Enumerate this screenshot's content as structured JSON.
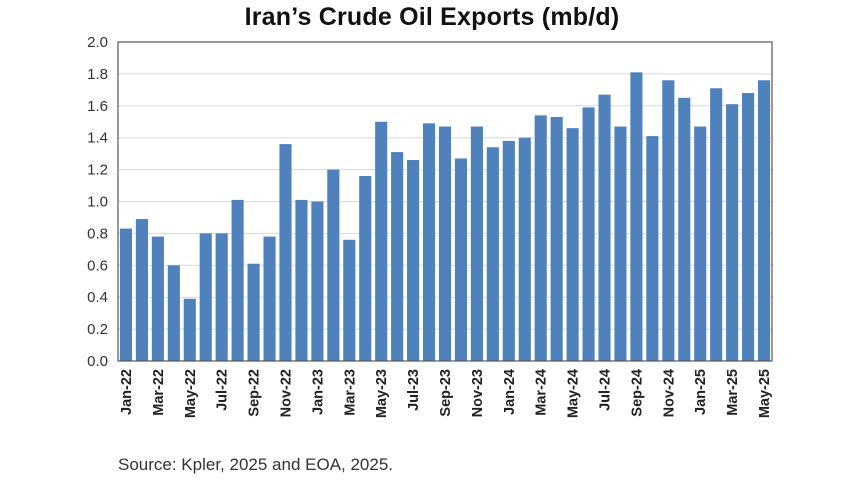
{
  "chart_data": {
    "type": "bar",
    "title": "Iran’s Crude Oil Exports (mb/d)",
    "xlabel": "",
    "ylabel": "",
    "ylim": [
      0,
      2.0
    ],
    "yticks": [
      "0.0",
      "0.2",
      "0.4",
      "0.6",
      "0.8",
      "1.0",
      "1.2",
      "1.4",
      "1.6",
      "1.8",
      "2.0"
    ],
    "categories": [
      "Jan-22",
      "Feb-22",
      "Mar-22",
      "Apr-22",
      "May-22",
      "Jun-22",
      "Jul-22",
      "Aug-22",
      "Sep-22",
      "Oct-22",
      "Nov-22",
      "Dec-22",
      "Jan-23",
      "Feb-23",
      "Mar-23",
      "Apr-23",
      "May-23",
      "Jun-23",
      "Jul-23",
      "Aug-23",
      "Sep-23",
      "Oct-23",
      "Nov-23",
      "Dec-23",
      "Jan-24",
      "Feb-24",
      "Mar-24",
      "Apr-24",
      "May-24",
      "Jun-24",
      "Jul-24",
      "Aug-24",
      "Sep-24",
      "Oct-24",
      "Nov-24",
      "Dec-24",
      "Jan-25",
      "Feb-25",
      "Mar-25",
      "Apr-25",
      "May-25"
    ],
    "xtick_labels": [
      "Jan-22",
      "Mar-22",
      "May-22",
      "Jul-22",
      "Sep-22",
      "Nov-22",
      "Jan-23",
      "Mar-23",
      "May-23",
      "Jul-23",
      "Sep-23",
      "Nov-23",
      "Jan-24",
      "Mar-24",
      "May-24",
      "Jul-24",
      "Sep-24",
      "Nov-24",
      "Jan-25",
      "Mar-25",
      "May-25"
    ],
    "values": [
      0.83,
      0.89,
      0.78,
      0.6,
      0.39,
      0.8,
      0.8,
      1.01,
      0.61,
      0.78,
      1.36,
      1.01,
      1.0,
      1.2,
      0.76,
      1.16,
      1.5,
      1.31,
      1.26,
      1.49,
      1.47,
      1.27,
      1.47,
      1.34,
      1.38,
      1.4,
      1.54,
      1.53,
      1.46,
      1.59,
      1.67,
      1.47,
      1.81,
      1.41,
      1.76,
      1.65,
      1.47,
      1.71,
      1.61,
      1.68,
      1.76
    ],
    "bar_color": "#4f81bd",
    "grid": true
  },
  "source_note": "Source: Kpler, 2025 and EOA, 2025."
}
